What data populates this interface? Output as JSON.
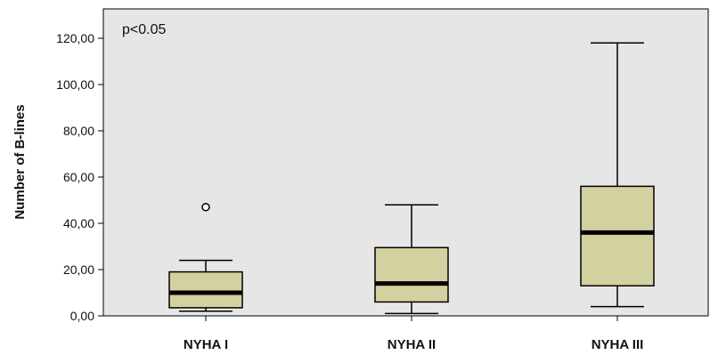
{
  "chart_data": {
    "type": "boxplot",
    "ylabel": "Number of B-lines",
    "annotation": "p<0.05",
    "ylim": [
      0,
      130
    ],
    "yticks": [
      0,
      20,
      40,
      60,
      80,
      100,
      120
    ],
    "ytick_labels": [
      "0,00",
      "20,00",
      "40,00",
      "60,00",
      "80,00",
      "100,00",
      "120,00"
    ],
    "grid": false,
    "colors": {
      "box_fill": "#d4d1a0",
      "plot_bg": "#e6e6e6",
      "stroke": "#000000"
    },
    "categories": [
      "NYHA I",
      "NYHA II",
      "NYHA III"
    ],
    "boxes": [
      {
        "category": "NYHA I",
        "whisker_low": 2,
        "q1": 3.5,
        "median": 10,
        "q3": 19,
        "whisker_high": 24,
        "outliers": [
          47
        ]
      },
      {
        "category": "NYHA II",
        "whisker_low": 1,
        "q1": 6,
        "median": 14,
        "q3": 29.5,
        "whisker_high": 48,
        "outliers": []
      },
      {
        "category": "NYHA III",
        "whisker_low": 4,
        "q1": 13,
        "median": 36,
        "q3": 56,
        "whisker_high": 118,
        "outliers": []
      }
    ]
  }
}
